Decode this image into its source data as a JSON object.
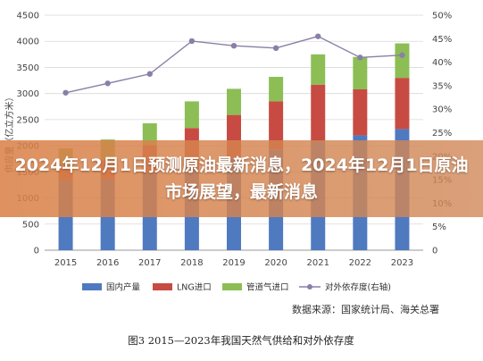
{
  "overlay": {
    "title": "2024年12月1日预测原油最新消息，2024年12月1日原油市场展望，最新消息"
  },
  "colors": {
    "domestic": "#4f7ac0",
    "lng": "#c84b43",
    "pipeline": "#8cbe55",
    "dependency": "#8a7fa8",
    "grid": "#d9d9d9"
  },
  "chart_data": {
    "type": "bar",
    "stacked": true,
    "categories": [
      "2015",
      "2016",
      "2017",
      "2018",
      "2019",
      "2020",
      "2021",
      "2022",
      "2023"
    ],
    "series": [
      {
        "name": "国内产量",
        "values": [
          1350,
          1370,
          1480,
          1600,
          1760,
          1930,
          2080,
          2200,
          2320
        ]
      },
      {
        "name": "LNG进口",
        "values": [
          270,
          350,
          530,
          740,
          830,
          920,
          1090,
          880,
          980
        ]
      },
      {
        "name": "管道气进口",
        "values": [
          330,
          400,
          420,
          510,
          500,
          470,
          580,
          620,
          660
        ]
      }
    ],
    "line_series": {
      "name": "对外依存度(右轴)",
      "axis": "right",
      "values": [
        33.5,
        35.5,
        37.5,
        44.5,
        43.5,
        43,
        45.5,
        41,
        41.5
      ]
    },
    "ylabel": "供应量（亿立方米）",
    "ylim": [
      0,
      4500
    ],
    "yticks": [
      0,
      500,
      1000,
      1500,
      2000,
      2500,
      3000,
      3500,
      4000,
      4500
    ],
    "y2lim": [
      0,
      50
    ],
    "y2ticks": [
      "0",
      "5%",
      "10%",
      "15%",
      "20%",
      "25%",
      "30%",
      "35%",
      "40%",
      "45%",
      "50%"
    ],
    "grid": true,
    "legend": "bottom",
    "legend_labels": [
      "国内产量",
      "LNG进口",
      "管道气进口",
      "对外依存度(右轴)"
    ],
    "source": "数据来源：国家统计局、海关总署",
    "caption": "图3  2015—2023年我国天然气供给和对外依存度"
  }
}
